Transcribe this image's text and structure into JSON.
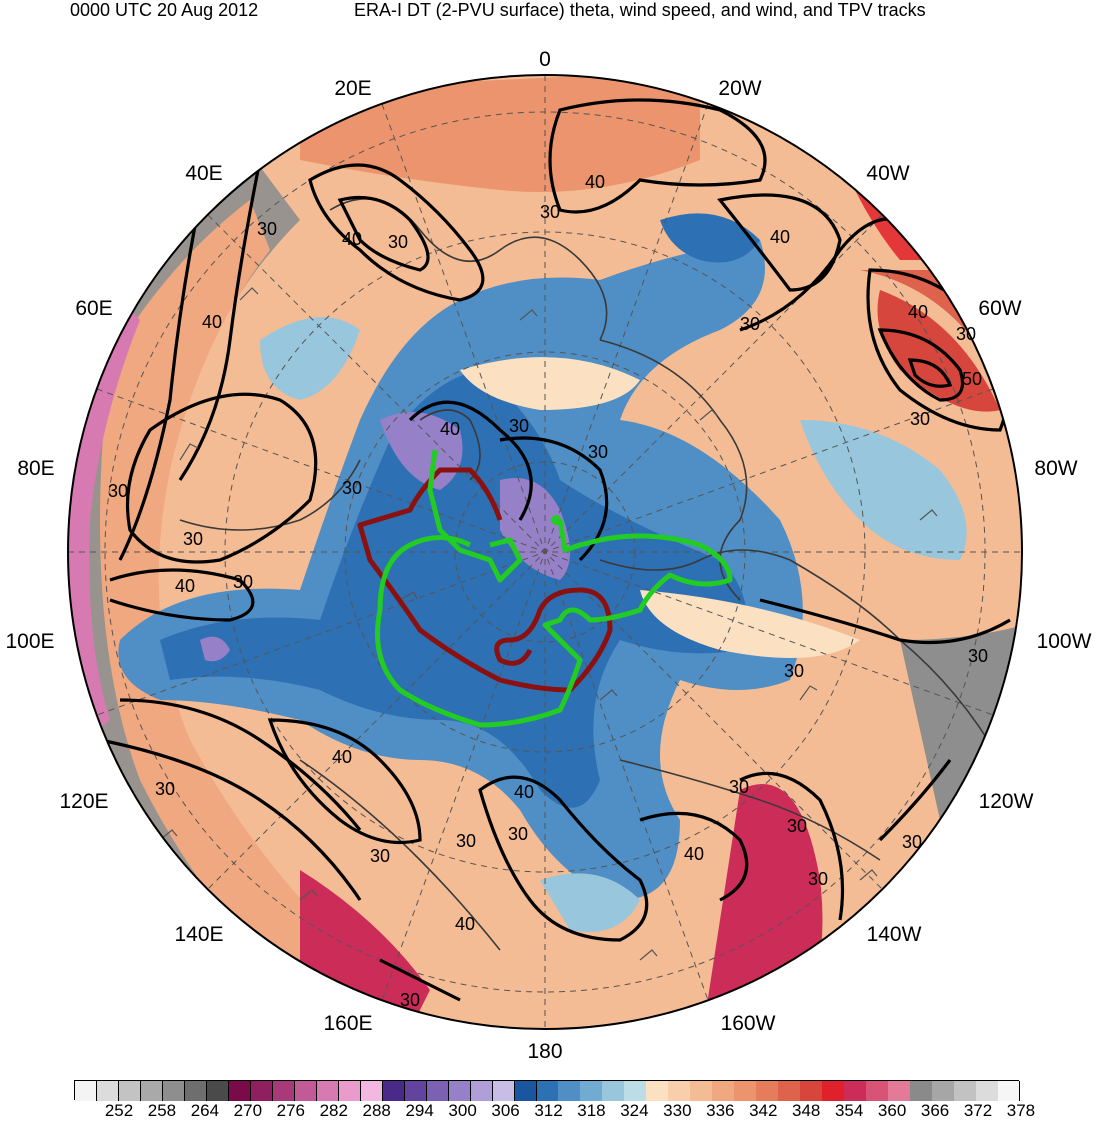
{
  "header": {
    "left": "0000 UTC 20 Aug 2012",
    "right": "ERA-I DT (2-PVU surface) theta, wind speed, and wind, and TPV tracks"
  },
  "map": {
    "projection": "north-polar-stereographic",
    "longitude_labels": [
      "0",
      "20W",
      "40W",
      "60W",
      "80W",
      "100W",
      "120W",
      "140W",
      "160W",
      "180",
      "160E",
      "140E",
      "120E",
      "100E",
      "80E",
      "60E",
      "40E",
      "20E"
    ],
    "contour_labels": [
      "30",
      "40",
      "50"
    ],
    "tracks": [
      {
        "name": "TPV track 1",
        "color": "#8b1010"
      },
      {
        "name": "TPV track 2",
        "color": "#22cc22"
      }
    ]
  },
  "colorbar": {
    "tick_labels": [
      "252",
      "258",
      "264",
      "270",
      "276",
      "282",
      "288",
      "294",
      "300",
      "306",
      "312",
      "318",
      "324",
      "330",
      "336",
      "342",
      "348",
      "354",
      "360",
      "366",
      "372",
      "378"
    ],
    "colors": [
      "#f4f4f4",
      "#dcdcdc",
      "#c3c3c3",
      "#a9a9a9",
      "#8e8e8e",
      "#6e6e6e",
      "#4a4a4a",
      "#7a0a4a",
      "#8f1f5e",
      "#a83a7a",
      "#c25a98",
      "#d87ab2",
      "#e99bcc",
      "#f2b8e0",
      "#4a2a88",
      "#62449e",
      "#7c60b4",
      "#9680c8",
      "#b09ed8",
      "#c8bde6",
      "#1a55a0",
      "#2e70b4",
      "#4f8fc6",
      "#72abd2",
      "#98c6dc",
      "#bcdde6",
      "#fbe1c2",
      "#f8cfaa",
      "#f4bc94",
      "#f0a880",
      "#eb946d",
      "#e57c5c",
      "#de624c",
      "#d6463c",
      "#e0202a",
      "#cc2c58",
      "#d85476",
      "#e27a98",
      "#8a8a8a",
      "#a6a6a6",
      "#c2c2c2",
      "#dcdcdc",
      "#f6f6f6"
    ]
  }
}
